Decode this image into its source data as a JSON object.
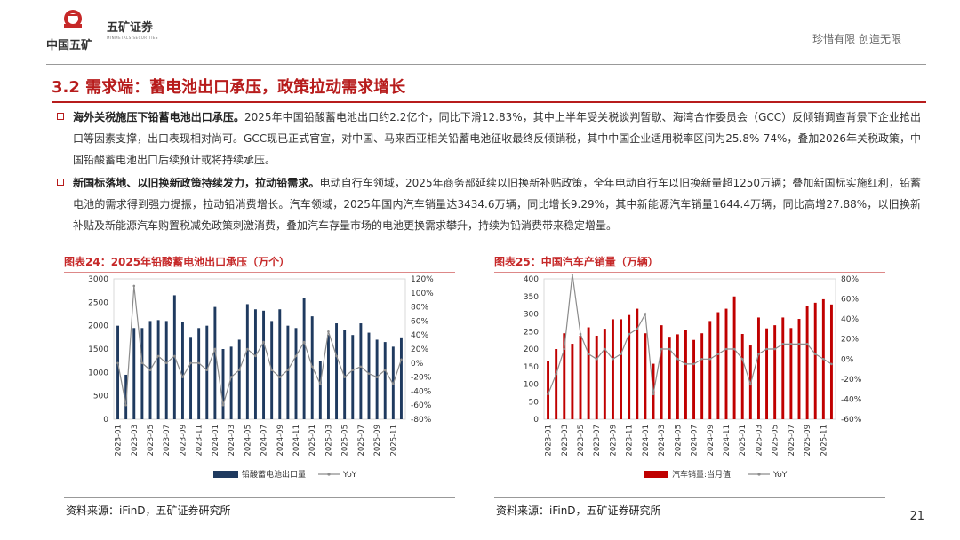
{
  "header": {
    "logo_text": "中国五矿",
    "brand_name": "五矿证券",
    "brand_name_en": "MINMETALS SECURITIES",
    "slogan": "珍惜有限 创造无限"
  },
  "section_title": "3.2 需求端：蓄电池出口承压，政策拉动需求增长",
  "bullets": [
    {
      "bold": "海外关税施压下铅蓄电池出口承压。",
      "text": "2025年中国铅酸蓄电池出口约2.2亿个，同比下滑12.83%，其中上半年受关税谈判暂歇、海湾合作委员会（GCC）反倾销调查背景下企业抢出口等因素支撑，出口表现相对尚可。GCC现已正式官宣，对中国、马来西亚相关铅蓄电池征收最终反倾销税，其中中国企业适用税率区间为25.8%-74%，叠加2026年关税政策，中国铅酸蓄电池出口后续预计或将持续承压。"
    },
    {
      "bold": "新国标落地、以旧换新政策持续发力，拉动铅需求。",
      "text": "电动自行车领域，2025年商务部延续以旧换新补贴政策，全年电动自行车以旧换新量超1250万辆；叠加新国标实施红利，铅蓄电池的需求得到强力提振，拉动铅消费增长。汽车领域，2025年国内汽车销量达3434.6万辆，同比增长9.29%，其中新能源汽车销量1644.4万辆，同比高增27.88%，以旧换新补贴及新能源汽车购置税减免政策刺激消费，叠加汽车存量市场的电池更换需求攀升，持续为铅消费带来稳定增量。"
    }
  ],
  "chart_data": [
    {
      "type": "bar",
      "title": "图表24：2025年铅酸蓄电池出口承压（万个）",
      "categories": [
        "2023-01",
        "2023-02",
        "2023-03",
        "2023-04",
        "2023-05",
        "2023-06",
        "2023-07",
        "2023-08",
        "2023-09",
        "2023-10",
        "2023-11",
        "2023-12",
        "2024-01",
        "2024-02",
        "2024-03",
        "2024-04",
        "2024-05",
        "2024-06",
        "2024-07",
        "2024-08",
        "2024-09",
        "2024-10",
        "2024-11",
        "2024-12",
        "2025-01",
        "2025-02",
        "2025-03",
        "2025-04",
        "2025-05",
        "2025-06",
        "2025-07",
        "2025-08",
        "2025-09",
        "2025-10",
        "2025-11",
        "2025-12"
      ],
      "x_tick_labels": [
        "2023-01",
        "2023-03",
        "2023-05",
        "2023-07",
        "2023-09",
        "2023-11",
        "2024-01",
        "2024-03",
        "2024-05",
        "2024-07",
        "2024-09",
        "2024-11",
        "2025-01",
        "2025-03",
        "2025-05",
        "2025-07",
        "2025-09",
        "2025-11"
      ],
      "series": [
        {
          "name": "铅酸蓄电池出口量",
          "kind": "bar",
          "axis": "left",
          "color": "#1f3a5f",
          "values": [
            2000,
            950,
            1950,
            1950,
            2100,
            2120,
            2100,
            2650,
            2080,
            1760,
            1950,
            2000,
            2400,
            1500,
            1550,
            1700,
            2460,
            2350,
            2320,
            2100,
            2350,
            2000,
            1950,
            2600,
            2200,
            1250,
            1800,
            2050,
            1900,
            1800,
            2050,
            1850,
            1700,
            1650,
            1550,
            1750
          ]
        },
        {
          "name": "YoY",
          "kind": "line",
          "axis": "right",
          "color": "#8c8c8c",
          "values": [
            0,
            -60,
            110,
            0,
            -10,
            10,
            0,
            10,
            -20,
            0,
            0,
            -10,
            20,
            -60,
            -20,
            -10,
            20,
            10,
            30,
            -10,
            -20,
            -10,
            10,
            30,
            -5,
            -30,
            45,
            10,
            -20,
            -10,
            -5,
            -15,
            -20,
            -10,
            -30,
            5
          ]
        }
      ],
      "y_left": {
        "min": 0,
        "max": 3000,
        "ticks": [
          0,
          500,
          1000,
          1500,
          2000,
          2500,
          3000
        ]
      },
      "y_right": {
        "min": -80,
        "max": 120,
        "ticks": [
          "-80%",
          "-60%",
          "-40%",
          "-20%",
          "0%",
          "20%",
          "40%",
          "60%",
          "80%",
          "100%",
          "120%"
        ]
      },
      "legend": [
        "铅酸蓄电池出口量",
        "YoY"
      ],
      "source": "资料来源：iFinD，五矿证券研究所"
    },
    {
      "type": "bar",
      "title": "图表25：中国汽车产销量（万辆）",
      "categories": [
        "2023-01",
        "2023-02",
        "2023-03",
        "2023-04",
        "2023-05",
        "2023-06",
        "2023-07",
        "2023-08",
        "2023-09",
        "2023-10",
        "2023-11",
        "2023-12",
        "2024-01",
        "2024-02",
        "2024-03",
        "2024-04",
        "2024-05",
        "2024-06",
        "2024-07",
        "2024-08",
        "2024-09",
        "2024-10",
        "2024-11",
        "2024-12",
        "2025-01",
        "2025-02",
        "2025-03",
        "2025-04",
        "2025-05",
        "2025-06",
        "2025-07",
        "2025-08",
        "2025-09",
        "2025-10",
        "2025-11",
        "2025-12"
      ],
      "x_tick_labels": [
        "2023-01",
        "2023-03",
        "2023-05",
        "2023-07",
        "2023-09",
        "2023-11",
        "2024-01",
        "2024-03",
        "2024-05",
        "2024-07",
        "2024-09",
        "2024-11",
        "2025-01",
        "2025-03",
        "2025-05",
        "2025-07",
        "2025-09",
        "2025-11"
      ],
      "series": [
        {
          "name": "汽车销量:当月值",
          "kind": "bar",
          "axis": "left",
          "color": "#c00000",
          "values": [
            165,
            200,
            245,
            215,
            238,
            262,
            238,
            258,
            285,
            285,
            297,
            315,
            245,
            158,
            268,
            235,
            242,
            255,
            226,
            245,
            280,
            305,
            315,
            350,
            243,
            210,
            290,
            259,
            268,
            290,
            260,
            286,
            322,
            332,
            342,
            327
          ]
        },
        {
          "name": "YoY",
          "kind": "line",
          "axis": "right",
          "color": "#8c8c8c",
          "values": [
            -35,
            -15,
            10,
            85,
            25,
            5,
            0,
            10,
            0,
            5,
            25,
            30,
            45,
            -35,
            10,
            10,
            0,
            -5,
            -5,
            0,
            0,
            5,
            10,
            10,
            0,
            -25,
            5,
            10,
            10,
            15,
            15,
            15,
            15,
            5,
            0,
            -5
          ]
        }
      ],
      "y_left": {
        "min": 0,
        "max": 400,
        "ticks": [
          0,
          50,
          100,
          150,
          200,
          250,
          300,
          350,
          400
        ]
      },
      "y_right": {
        "min": -60,
        "max": 80,
        "ticks": [
          "-60%",
          "-40%",
          "-20%",
          "0%",
          "20%",
          "40%",
          "60%",
          "80%"
        ]
      },
      "legend": [
        "汽车销量:当月值",
        "YoY"
      ],
      "source": "资料来源：iFinD，五矿证券研究所"
    }
  ],
  "page_number": "21"
}
